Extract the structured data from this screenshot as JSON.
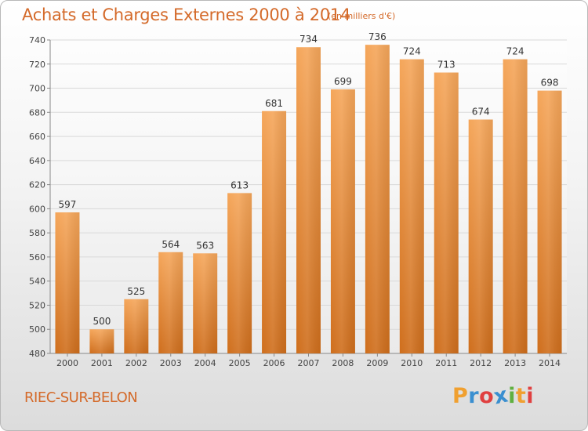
{
  "header": {
    "title": "Achats et Charges Externes 2000 à 2014",
    "subtitle": "(en milliers d'€)"
  },
  "footer": {
    "commune": "RIEC-SUR-BELON",
    "logo_letters": [
      "P",
      "r",
      "o",
      "x",
      "i",
      "t",
      "i"
    ],
    "logo_colors": [
      "#f0a030",
      "#3a8fd0",
      "#e04040",
      "#3a8fd0",
      "#60b040",
      "#f0a030",
      "#e04040"
    ]
  },
  "chart_data": {
    "type": "bar",
    "title": "Achats et Charges Externes 2000 à 2014",
    "subtitle": "(en milliers d'€)",
    "categories": [
      "2000",
      "2001",
      "2002",
      "2003",
      "2004",
      "2005",
      "2006",
      "2007",
      "2008",
      "2009",
      "2010",
      "2011",
      "2012",
      "2013",
      "2014"
    ],
    "values": [
      597,
      500,
      525,
      564,
      563,
      613,
      681,
      734,
      699,
      736,
      724,
      713,
      674,
      724,
      698
    ],
    "data_labels": [
      "597",
      "500",
      "525",
      "564",
      "563",
      "613",
      "681",
      "734",
      "699",
      "736",
      "724",
      "713",
      "674",
      "724",
      "698"
    ],
    "ylim": [
      480,
      740
    ],
    "yticks": [
      480,
      500,
      520,
      540,
      560,
      580,
      600,
      620,
      640,
      660,
      680,
      700,
      720,
      740
    ],
    "grid": true,
    "bar_color_top": "#f5a65a",
    "bar_color_bottom": "#cf6e1c"
  }
}
